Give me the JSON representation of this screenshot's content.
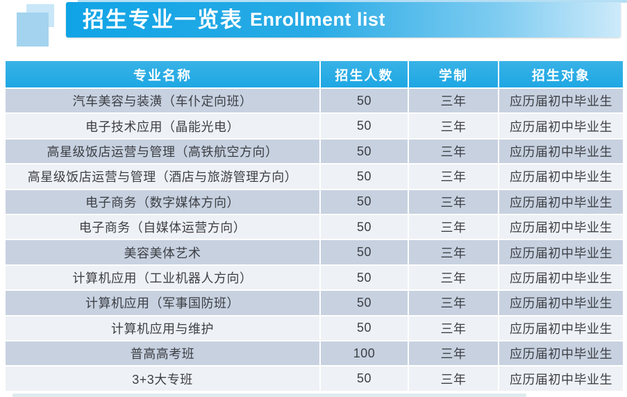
{
  "banner": {
    "title_cn": "招生专业一览表",
    "title_en": "Enrollment list"
  },
  "table": {
    "headers": [
      "专业名称",
      "招生人数",
      "学制",
      "招生对象"
    ],
    "column_keys": [
      "major",
      "enrollment",
      "duration",
      "target"
    ],
    "rows": [
      [
        "汽车美容与装潢（车仆定向班）",
        "50",
        "三年",
        "应历届初中毕业生"
      ],
      [
        "电子技术应用（晶能光电）",
        "50",
        "三年",
        "应历届初中毕业生"
      ],
      [
        "高星级饭店运营与管理（高铁航空方向）",
        "50",
        "三年",
        "应历届初中毕业生"
      ],
      [
        "高星级饭店运营与管理（酒店与旅游管理方向）",
        "50",
        "三年",
        "应历届初中毕业生"
      ],
      [
        "电子商务（数字媒体方向）",
        "50",
        "三年",
        "应历届初中毕业生"
      ],
      [
        "电子商务（自媒体运营方向）",
        "50",
        "三年",
        "应历届初中毕业生"
      ],
      [
        "美容美体艺术",
        "50",
        "三年",
        "应历届初中毕业生"
      ],
      [
        "计算机应用（工业机器人方向）",
        "50",
        "三年",
        "应历届初中毕业生"
      ],
      [
        "计算机应用（军事国防班）",
        "50",
        "三年",
        "应历届初中毕业生"
      ],
      [
        "计算机应用与维护",
        "50",
        "三年",
        "应历届初中毕业生"
      ],
      [
        "普高高考班",
        "100",
        "三年",
        "应历届初中毕业生"
      ],
      [
        "3+3大专班",
        "50",
        "三年",
        "应历届初中毕业生"
      ]
    ]
  },
  "colors": {
    "banner_gradient_start": "#10a4e6",
    "banner_gradient_end": "#cdeafa",
    "table_header_bg": "#1ea7e3",
    "row_odd_bg": "#c7d1e0",
    "row_even_bg": "#eef1f5",
    "cell_separator": "#ffffff",
    "body_text": "#3d3f44",
    "decor_square_light": "#c9e7f8",
    "decor_square_dark": "#a3d3ee",
    "top_strip": "#b5dff5"
  }
}
